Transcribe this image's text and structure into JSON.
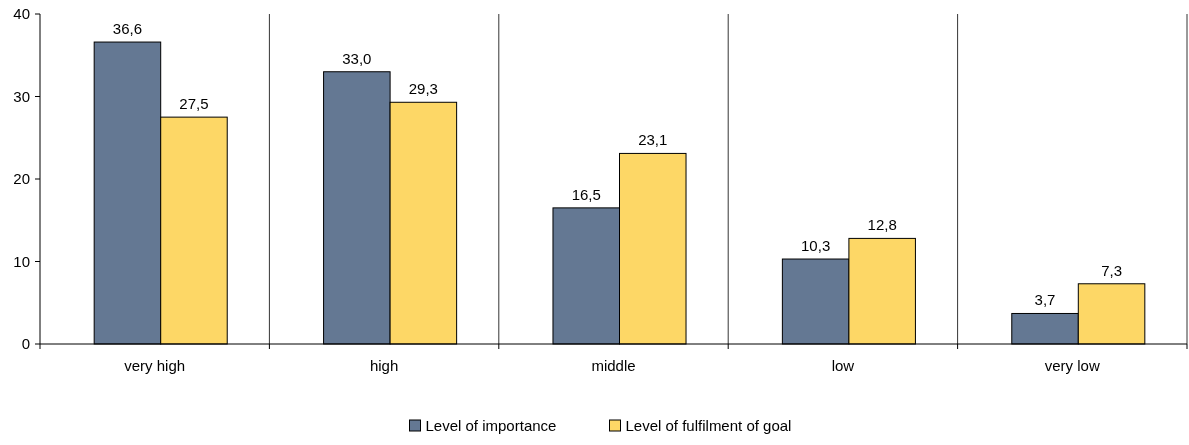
{
  "chart_data": {
    "type": "bar",
    "categories": [
      "very high",
      "high",
      "middle",
      "low",
      "very low"
    ],
    "series": [
      {
        "name": "Level of importance",
        "color": "#647893",
        "values": [
          36.6,
          33.0,
          16.5,
          10.3,
          3.7
        ],
        "value_labels": [
          "36,6",
          "33,0",
          "16,5",
          "10,3",
          "3,7"
        ]
      },
      {
        "name": "Level of fulfilment of goal",
        "color": "#fdd766",
        "values": [
          27.5,
          29.3,
          23.1,
          12.8,
          7.3
        ],
        "value_labels": [
          "27,5",
          "29,3",
          "23,1",
          "12,8",
          "7,3"
        ]
      }
    ],
    "ylim": [
      0,
      40
    ],
    "yticks": [
      0,
      10,
      20,
      30,
      40
    ],
    "grid": "x",
    "legend": "bottom"
  }
}
